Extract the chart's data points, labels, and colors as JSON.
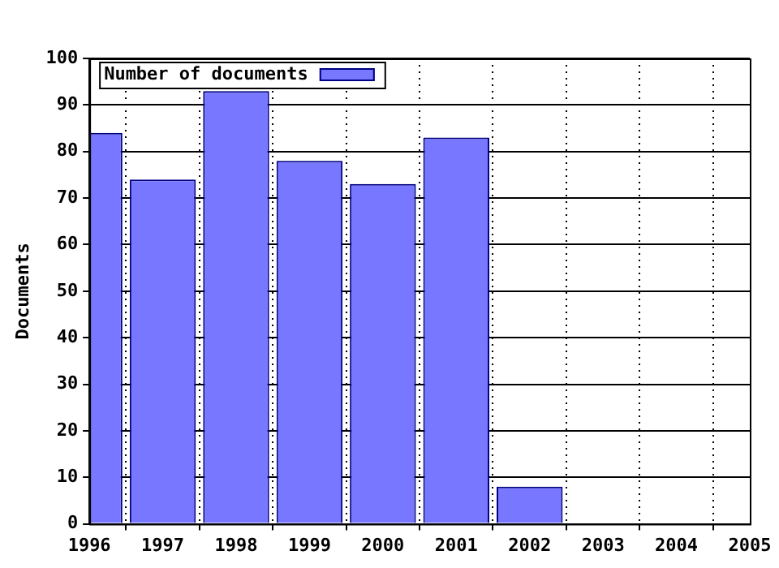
{
  "chart_data": {
    "type": "bar",
    "ylabel": "Documents",
    "x": [
      1996,
      1997,
      1998,
      1999,
      2000,
      2001,
      2002
    ],
    "series": [
      {
        "name": "Number of documents",
        "color": "#7777ff",
        "values": [
          84,
          74,
          93,
          78,
          73,
          83,
          8
        ]
      }
    ],
    "xlim": [
      1996,
      2005
    ],
    "xticks": [
      1996,
      1997,
      1998,
      1999,
      2000,
      2001,
      2002,
      2003,
      2004,
      2005
    ],
    "ylim": [
      0,
      100
    ],
    "yticks": [
      0,
      10,
      20,
      30,
      40,
      50,
      60,
      70,
      80,
      90,
      100
    ],
    "grid": true,
    "legend": "top left"
  }
}
